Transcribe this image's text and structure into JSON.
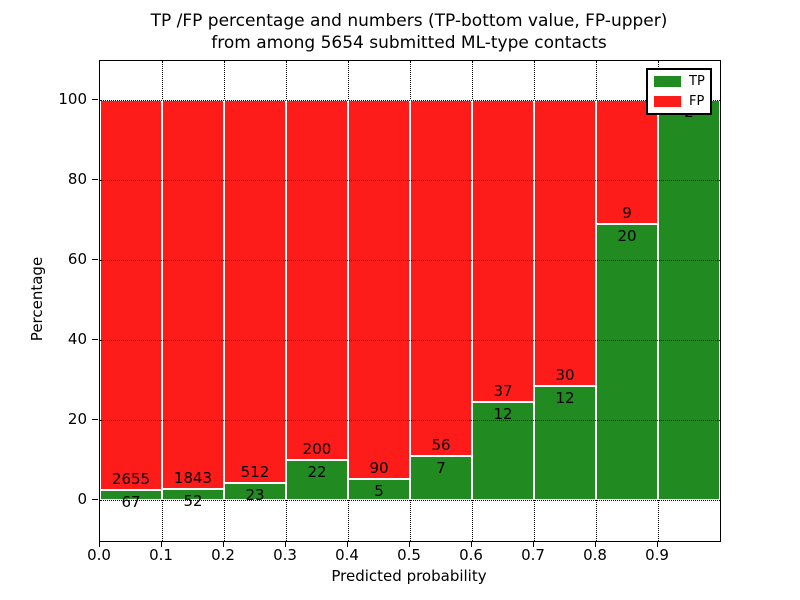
{
  "title": {
    "line1": "TP /FP percentage and numbers (TP-bottom value, FP-upper)",
    "line2": "from among 5654 submitted ML-type contacts"
  },
  "axes": {
    "xlabel": "Predicted probability",
    "ylabel": "Percentage",
    "x_ticks": [
      "0.0",
      "0.1",
      "0.2",
      "0.3",
      "0.4",
      "0.5",
      "0.6",
      "0.7",
      "0.8",
      "0.9"
    ],
    "y_ticks": [
      0,
      20,
      40,
      60,
      80,
      100
    ]
  },
  "legend": {
    "items": [
      {
        "label": "TP",
        "color": "#218a21"
      },
      {
        "label": "FP",
        "color": "#fd1c1a"
      }
    ]
  },
  "colors": {
    "tp": "#218a21",
    "fp": "#fd1c1a",
    "grid": "#000000",
    "bar_edge": "#ffffff"
  },
  "chart_data": {
    "type": "bar",
    "stacked": true,
    "title": "TP /FP percentage and numbers (TP-bottom value, FP-upper) from among 5654 submitted ML-type contacts",
    "xlabel": "Predicted probability",
    "ylabel": "Percentage",
    "total_contacts": 5654,
    "bin_width": 0.1,
    "categories": [
      "0.0-0.1",
      "0.1-0.2",
      "0.2-0.3",
      "0.3-0.4",
      "0.4-0.5",
      "0.5-0.6",
      "0.6-0.7",
      "0.7-0.8",
      "0.8-0.9",
      "0.9-1.0"
    ],
    "series": [
      {
        "name": "TP",
        "counts": [
          67,
          52,
          23,
          22,
          5,
          7,
          12,
          12,
          20,
          2
        ]
      },
      {
        "name": "FP",
        "counts": [
          2655,
          1843,
          512,
          200,
          90,
          56,
          37,
          30,
          9,
          0
        ]
      }
    ],
    "tp_percent": [
      2.46,
      2.74,
      4.3,
      9.91,
      5.26,
      11.11,
      24.49,
      28.57,
      68.97,
      100.0
    ],
    "ylim": [
      -11,
      110
    ],
    "grid": true,
    "grid_style": "dotted",
    "legend_position": "upper right"
  }
}
